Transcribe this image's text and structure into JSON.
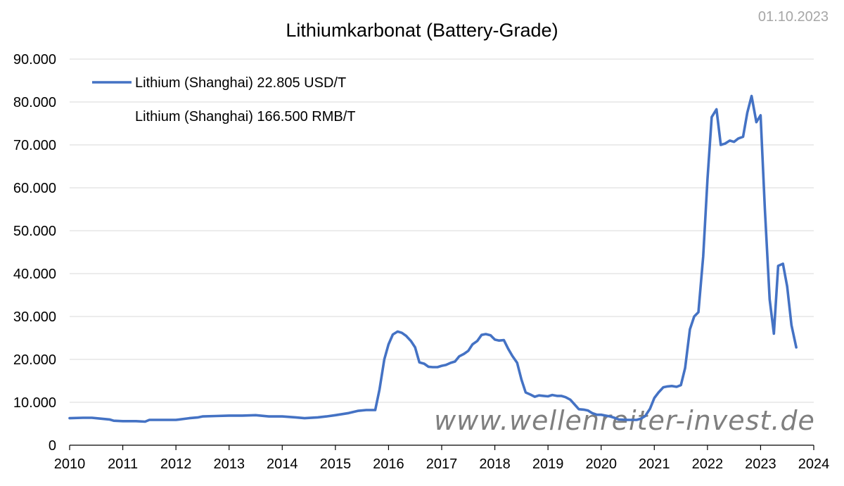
{
  "date_label": "01.10.2023",
  "watermark": "www.wellenreiter-invest.de",
  "colors": {
    "series": "#4472c4",
    "grid": "#d9d9d9",
    "axis": "#000000"
  },
  "chart_data": {
    "type": "line",
    "title": "Lithiumkarbonat (Battery-Grade)",
    "xlabel": "",
    "ylabel": "",
    "xlim": [
      2010,
      2024
    ],
    "ylim": [
      0,
      90000
    ],
    "grid": "horizontal",
    "legend_position": "top-left",
    "y_ticks": [
      0,
      10000,
      20000,
      30000,
      40000,
      50000,
      60000,
      70000,
      80000,
      90000
    ],
    "y_tick_labels": [
      "0",
      "10.000",
      "20.000",
      "30.000",
      "40.000",
      "50.000",
      "60.000",
      "70.000",
      "80.000",
      "90.000"
    ],
    "x_ticks": [
      2010,
      2011,
      2012,
      2013,
      2014,
      2015,
      2016,
      2017,
      2018,
      2019,
      2020,
      2021,
      2022,
      2023,
      2024
    ],
    "x_tick_labels": [
      "2010",
      "2011",
      "2012",
      "2013",
      "2014",
      "2015",
      "2016",
      "2017",
      "2018",
      "2019",
      "2020",
      "2021",
      "2022",
      "2023",
      "2024"
    ],
    "legend": [
      {
        "label": "Lithium (Shanghai) 22.805 USD/T",
        "has_line": true
      },
      {
        "label": "Lithium (Shanghai) 166.500 RMB/T",
        "has_line": false
      }
    ],
    "series": [
      {
        "name": "Lithium (Shanghai) 22.805 USD/T",
        "points": [
          [
            2010.0,
            6300
          ],
          [
            2010.25,
            6400
          ],
          [
            2010.42,
            6400
          ],
          [
            2010.58,
            6200
          ],
          [
            2010.75,
            6000
          ],
          [
            2010.83,
            5700
          ],
          [
            2011.0,
            5600
          ],
          [
            2011.25,
            5600
          ],
          [
            2011.42,
            5500
          ],
          [
            2011.5,
            5900
          ],
          [
            2011.75,
            5900
          ],
          [
            2012.0,
            5900
          ],
          [
            2012.25,
            6300
          ],
          [
            2012.42,
            6500
          ],
          [
            2012.5,
            6700
          ],
          [
            2012.75,
            6800
          ],
          [
            2013.0,
            6900
          ],
          [
            2013.25,
            6900
          ],
          [
            2013.5,
            7000
          ],
          [
            2013.75,
            6700
          ],
          [
            2014.0,
            6700
          ],
          [
            2014.25,
            6500
          ],
          [
            2014.42,
            6300
          ],
          [
            2014.67,
            6500
          ],
          [
            2014.83,
            6700
          ],
          [
            2015.0,
            7000
          ],
          [
            2015.25,
            7500
          ],
          [
            2015.42,
            8000
          ],
          [
            2015.58,
            8200
          ],
          [
            2015.75,
            8200
          ],
          [
            2015.83,
            13000
          ],
          [
            2015.92,
            20000
          ],
          [
            2016.0,
            23500
          ],
          [
            2016.08,
            25800
          ],
          [
            2016.17,
            26500
          ],
          [
            2016.25,
            26200
          ],
          [
            2016.33,
            25500
          ],
          [
            2016.42,
            24300
          ],
          [
            2016.5,
            22800
          ],
          [
            2016.58,
            19300
          ],
          [
            2016.67,
            19000
          ],
          [
            2016.75,
            18300
          ],
          [
            2016.83,
            18200
          ],
          [
            2016.92,
            18200
          ],
          [
            2017.0,
            18500
          ],
          [
            2017.08,
            18700
          ],
          [
            2017.17,
            19200
          ],
          [
            2017.25,
            19500
          ],
          [
            2017.33,
            20700
          ],
          [
            2017.42,
            21300
          ],
          [
            2017.5,
            22000
          ],
          [
            2017.58,
            23500
          ],
          [
            2017.67,
            24300
          ],
          [
            2017.75,
            25700
          ],
          [
            2017.83,
            25900
          ],
          [
            2017.92,
            25600
          ],
          [
            2018.0,
            24600
          ],
          [
            2018.08,
            24400
          ],
          [
            2018.17,
            24500
          ],
          [
            2018.25,
            22500
          ],
          [
            2018.33,
            20800
          ],
          [
            2018.42,
            19200
          ],
          [
            2018.5,
            15300
          ],
          [
            2018.58,
            12300
          ],
          [
            2018.67,
            11800
          ],
          [
            2018.75,
            11300
          ],
          [
            2018.83,
            11600
          ],
          [
            2018.92,
            11500
          ],
          [
            2019.0,
            11400
          ],
          [
            2019.08,
            11700
          ],
          [
            2019.17,
            11500
          ],
          [
            2019.25,
            11500
          ],
          [
            2019.33,
            11200
          ],
          [
            2019.42,
            10600
          ],
          [
            2019.5,
            9500
          ],
          [
            2019.58,
            8400
          ],
          [
            2019.67,
            8300
          ],
          [
            2019.75,
            8100
          ],
          [
            2019.83,
            7500
          ],
          [
            2019.92,
            7100
          ],
          [
            2020.0,
            7100
          ],
          [
            2020.08,
            6900
          ],
          [
            2020.17,
            6700
          ],
          [
            2020.25,
            6400
          ],
          [
            2020.33,
            6000
          ],
          [
            2020.5,
            5900
          ],
          [
            2020.67,
            5900
          ],
          [
            2020.75,
            6200
          ],
          [
            2020.83,
            6800
          ],
          [
            2020.92,
            8500
          ],
          [
            2021.0,
            11000
          ],
          [
            2021.08,
            12300
          ],
          [
            2021.17,
            13500
          ],
          [
            2021.25,
            13700
          ],
          [
            2021.33,
            13800
          ],
          [
            2021.42,
            13600
          ],
          [
            2021.5,
            14000
          ],
          [
            2021.58,
            18000
          ],
          [
            2021.67,
            27000
          ],
          [
            2021.75,
            30000
          ],
          [
            2021.83,
            31000
          ],
          [
            2021.92,
            44000
          ],
          [
            2022.0,
            62000
          ],
          [
            2022.08,
            76500
          ],
          [
            2022.17,
            78300
          ],
          [
            2022.25,
            70000
          ],
          [
            2022.33,
            70300
          ],
          [
            2022.42,
            71000
          ],
          [
            2022.5,
            70700
          ],
          [
            2022.58,
            71500
          ],
          [
            2022.67,
            71900
          ],
          [
            2022.75,
            77500
          ],
          [
            2022.83,
            81400
          ],
          [
            2022.92,
            75300
          ],
          [
            2023.0,
            76900
          ],
          [
            2023.08,
            55000
          ],
          [
            2023.17,
            34000
          ],
          [
            2023.25,
            26000
          ],
          [
            2023.33,
            41800
          ],
          [
            2023.42,
            42300
          ],
          [
            2023.5,
            37000
          ],
          [
            2023.58,
            28000
          ],
          [
            2023.67,
            22805
          ]
        ]
      }
    ]
  }
}
